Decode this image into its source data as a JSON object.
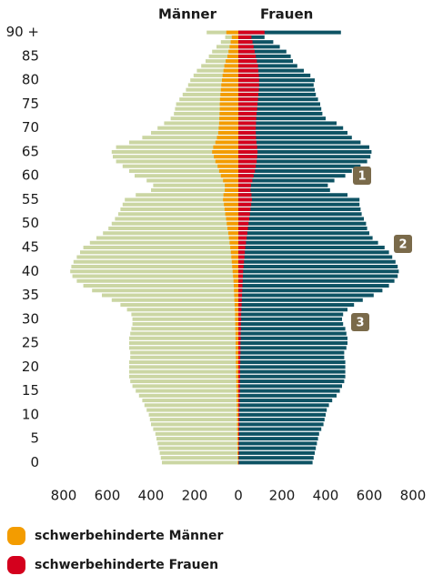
{
  "chart_data": {
    "type": "pyramid",
    "categories": [
      "0",
      null,
      null,
      null,
      null,
      "5",
      null,
      null,
      null,
      null,
      "10",
      null,
      null,
      null,
      null,
      "15",
      null,
      null,
      null,
      null,
      "20",
      null,
      null,
      null,
      null,
      "25",
      null,
      null,
      null,
      null,
      "30",
      null,
      null,
      null,
      null,
      "35",
      null,
      null,
      null,
      null,
      "40",
      null,
      null,
      null,
      null,
      "45",
      null,
      null,
      null,
      null,
      "50",
      null,
      null,
      null,
      null,
      "55",
      null,
      null,
      null,
      null,
      "60",
      null,
      null,
      null,
      null,
      "65",
      null,
      null,
      null,
      null,
      "70",
      null,
      null,
      null,
      null,
      "75",
      null,
      null,
      null,
      null,
      "80",
      null,
      null,
      null,
      null,
      "85",
      null,
      null,
      null,
      null,
      "90 +"
    ],
    "series": [
      {
        "name": "Männer",
        "side": "left",
        "color": "#cbd6a3",
        "values": [
          350,
          355,
          360,
          365,
          370,
          375,
          380,
          390,
          400,
          405,
          410,
          420,
          430,
          440,
          455,
          470,
          485,
          495,
          500,
          500,
          500,
          500,
          495,
          495,
          500,
          500,
          500,
          495,
          490,
          485,
          485,
          490,
          510,
          540,
          580,
          625,
          670,
          710,
          740,
          760,
          770,
          765,
          755,
          740,
          725,
          710,
          680,
          650,
          620,
          595,
          580,
          565,
          550,
          540,
          530,
          520,
          470,
          400,
          390,
          420,
          475,
          500,
          530,
          560,
          575,
          580,
          560,
          500,
          440,
          400,
          370,
          340,
          310,
          295,
          290,
          285,
          270,
          255,
          240,
          230,
          220,
          205,
          190,
          170,
          150,
          135,
          120,
          100,
          80,
          60,
          145
        ]
      },
      {
        "name": "Frauen",
        "side": "right",
        "color": "#0e5364",
        "values": [
          340,
          345,
          350,
          355,
          360,
          365,
          370,
          380,
          390,
          395,
          400,
          405,
          415,
          430,
          450,
          465,
          475,
          485,
          490,
          490,
          490,
          490,
          485,
          485,
          495,
          500,
          500,
          495,
          490,
          480,
          475,
          480,
          500,
          530,
          570,
          620,
          660,
          690,
          715,
          730,
          735,
          730,
          720,
          705,
          690,
          670,
          640,
          615,
          600,
          590,
          585,
          575,
          565,
          560,
          555,
          555,
          500,
          420,
          410,
          440,
          490,
          520,
          560,
          590,
          605,
          610,
          600,
          560,
          520,
          500,
          480,
          450,
          400,
          385,
          380,
          375,
          365,
          355,
          350,
          345,
          350,
          330,
          300,
          270,
          250,
          240,
          220,
          190,
          160,
          120,
          470
        ]
      },
      {
        "name": "schwerbehinderte Männer",
        "side": "left",
        "color": "#f39c00",
        "values": [
          3,
          3,
          4,
          4,
          5,
          5,
          5,
          6,
          6,
          6,
          7,
          7,
          7,
          8,
          8,
          8,
          9,
          9,
          10,
          10,
          10,
          11,
          11,
          12,
          12,
          12,
          13,
          13,
          14,
          14,
          15,
          15,
          16,
          17,
          18,
          19,
          20,
          21,
          22,
          24,
          26,
          28,
          30,
          32,
          34,
          37,
          40,
          43,
          46,
          50,
          53,
          56,
          60,
          63,
          66,
          70,
          68,
          62,
          62,
          70,
          80,
          88,
          95,
          105,
          112,
          120,
          115,
          105,
          98,
          92,
          90,
          88,
          87,
          86,
          85,
          85,
          84,
          82,
          80,
          78,
          75,
          72,
          68,
          64,
          58,
          50,
          45,
          40,
          35,
          30,
          55
        ]
      },
      {
        "name": "schwerbehinderte Frauen",
        "side": "right",
        "color": "#d4001d",
        "values": [
          2,
          2,
          3,
          3,
          3,
          4,
          4,
          4,
          5,
          5,
          5,
          5,
          6,
          6,
          6,
          7,
          7,
          7,
          8,
          8,
          8,
          9,
          9,
          10,
          10,
          10,
          11,
          11,
          12,
          12,
          13,
          13,
          14,
          15,
          16,
          17,
          18,
          19,
          20,
          21,
          22,
          24,
          26,
          28,
          30,
          32,
          35,
          38,
          41,
          44,
          47,
          50,
          53,
          56,
          59,
          62,
          60,
          56,
          58,
          64,
          70,
          76,
          80,
          84,
          86,
          88,
          86,
          83,
          81,
          80,
          80,
          81,
          82,
          84,
          86,
          88,
          90,
          92,
          94,
          95,
          95,
          94,
          92,
          90,
          85,
          80,
          75,
          70,
          65,
          60,
          120
        ]
      }
    ],
    "xlim": [
      -800,
      800
    ],
    "xticks": [
      {
        "value": -800,
        "label": "800"
      },
      {
        "value": -600,
        "label": "600"
      },
      {
        "value": -400,
        "label": "400"
      },
      {
        "value": -200,
        "label": "200"
      },
      0,
      200,
      400,
      600,
      800
    ],
    "legend": [
      2,
      3
    ],
    "annotations": [
      "1",
      "2",
      "3"
    ],
    "annotation_color": "#7a6a4a"
  }
}
